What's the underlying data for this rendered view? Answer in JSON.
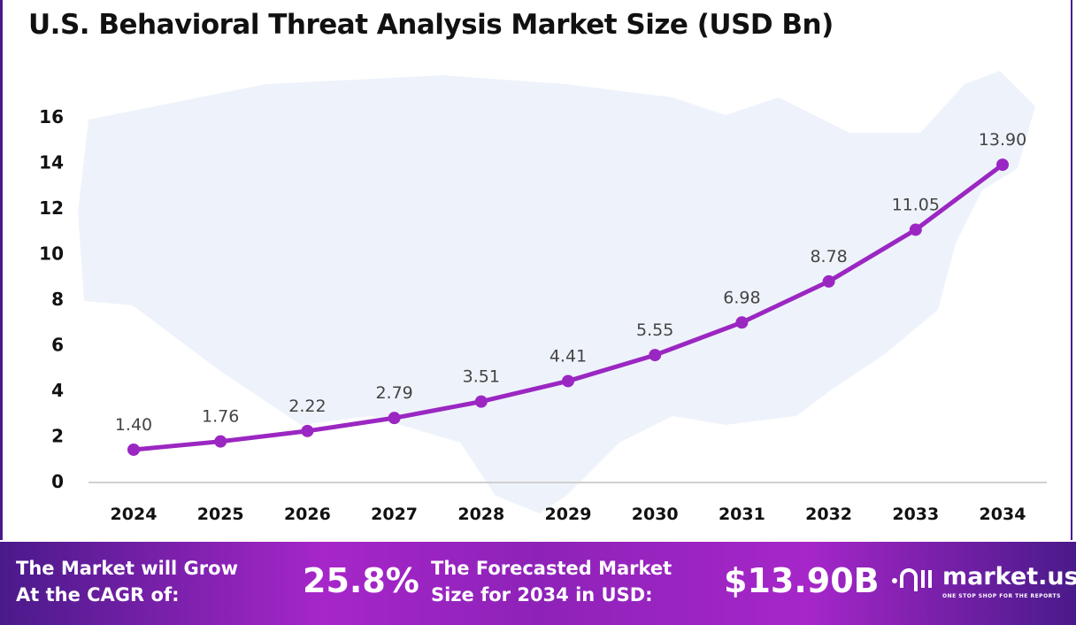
{
  "chart_data": {
    "type": "line",
    "title": "U.S. Behavioral Threat Analysis Market Size (USD Bn)",
    "categories": [
      "2024",
      "2025",
      "2026",
      "2027",
      "2028",
      "2029",
      "2030",
      "2031",
      "2032",
      "2033",
      "2034"
    ],
    "values": [
      1.4,
      1.76,
      2.22,
      2.79,
      3.51,
      4.41,
      5.55,
      6.98,
      8.78,
      11.05,
      13.9
    ],
    "data_labels": [
      "1.40",
      "1.76",
      "2.22",
      "2.79",
      "3.51",
      "4.41",
      "5.55",
      "6.98",
      "8.78",
      "11.05",
      "13.90"
    ],
    "yticks": [
      "0",
      "2",
      "4",
      "6",
      "8",
      "10",
      "12",
      "14",
      "16"
    ],
    "ylim": [
      0,
      16
    ],
    "grid": false,
    "series_color": "#9b27c2",
    "background": "US map silhouette"
  },
  "footer": {
    "cagr_text_line1": "The Market will Grow",
    "cagr_text_line2": "At the CAGR of:",
    "cagr_value": "25.8%",
    "forecast_text_line1": "The Forecasted Market",
    "forecast_text_line2": "Size for 2034 in USD:",
    "forecast_value": "$13.90B",
    "logo_name": "market.us",
    "logo_tagline": "ONE STOP SHOP FOR THE REPORTS"
  }
}
